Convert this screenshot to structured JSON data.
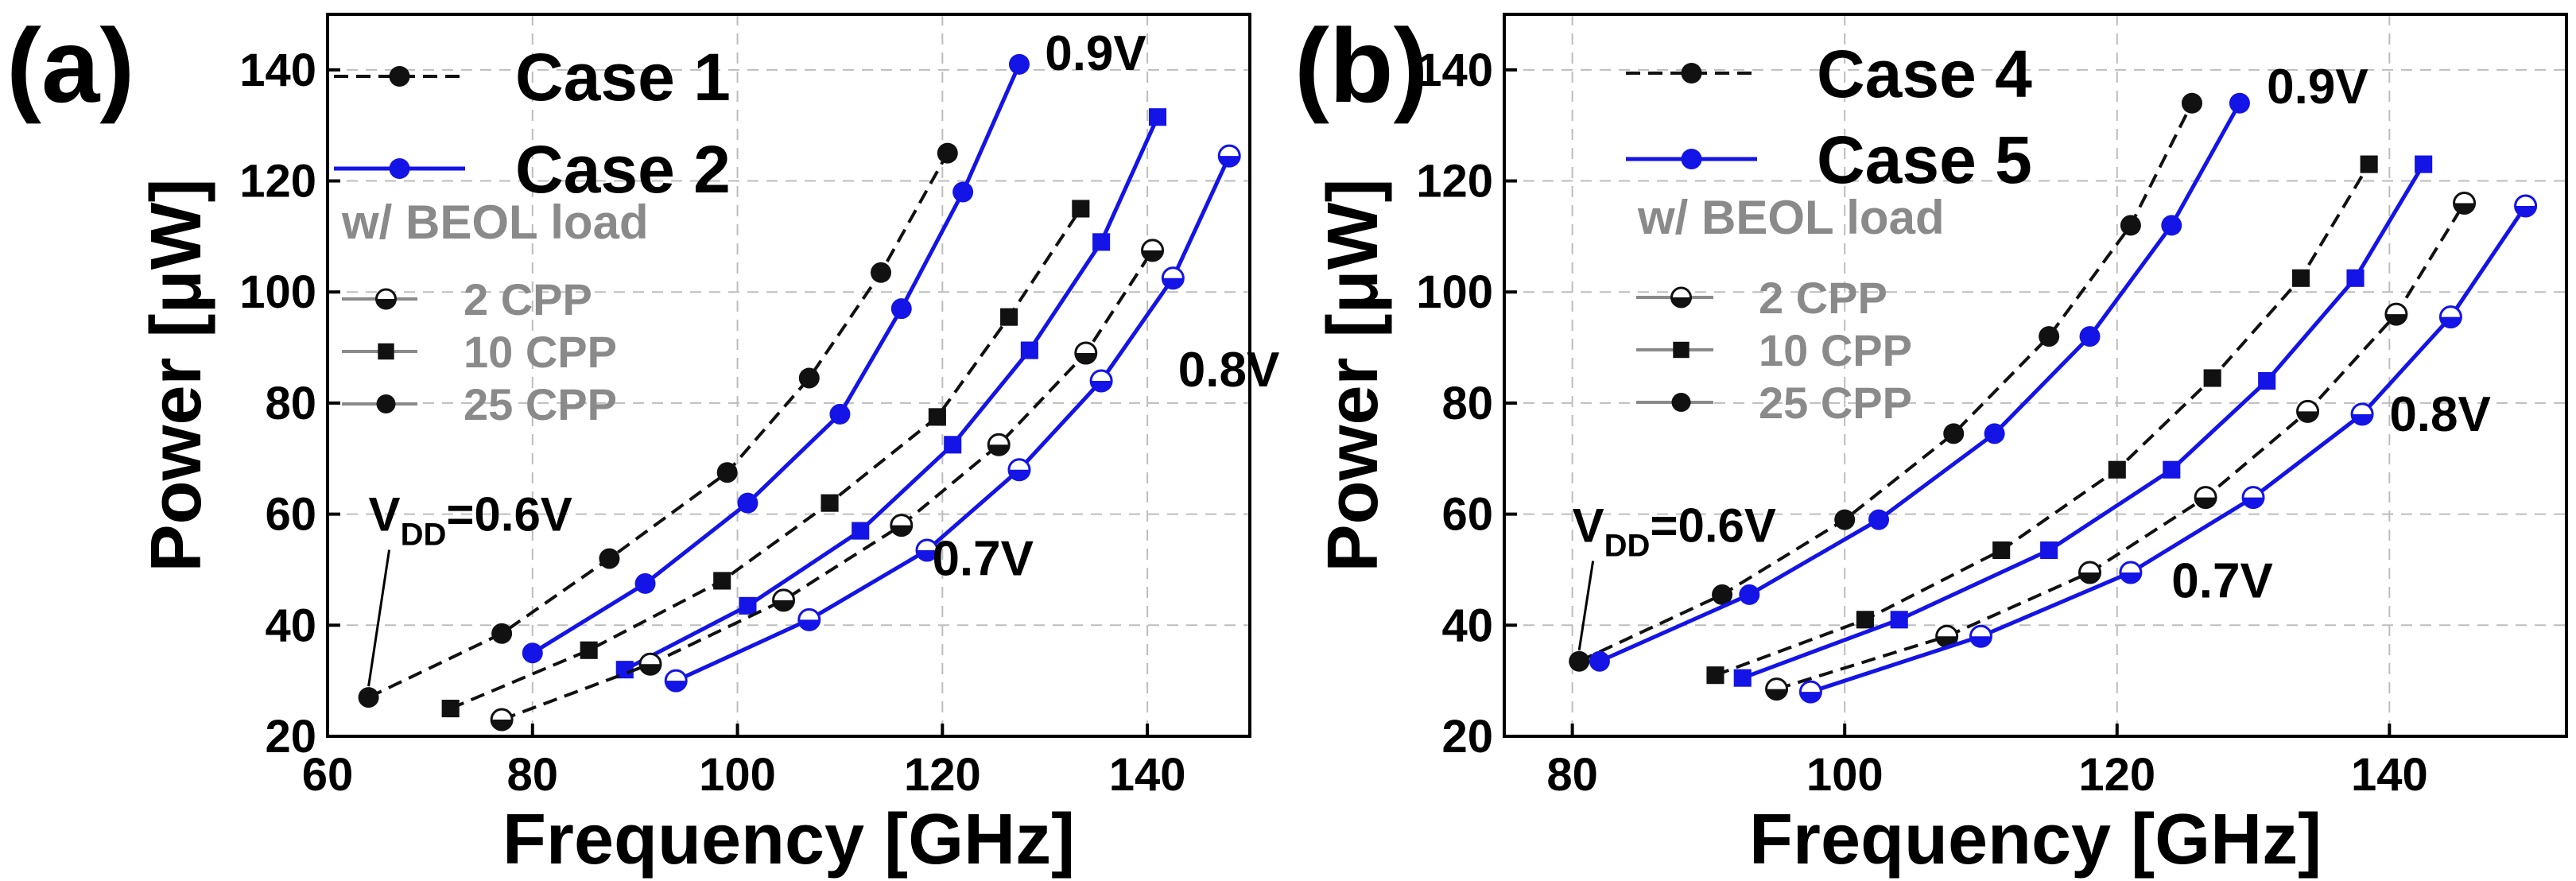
{
  "colors": {
    "black": "#111111",
    "blue": "#1414e6",
    "gray": "#8a8a8a",
    "grid": "#bdbdbd"
  },
  "chart_data": [
    {
      "type": "line",
      "panel_label": "(a)",
      "xlabel": "Frequency [GHz]",
      "ylabel": "Power [μW]",
      "xlim": [
        60,
        150
      ],
      "ylim": [
        20,
        150
      ],
      "xticks": [
        60,
        80,
        100,
        120,
        140
      ],
      "yticks": [
        20,
        40,
        60,
        80,
        100,
        120,
        140
      ],
      "grid": true,
      "legend": {
        "entries": [
          {
            "label": "Case 1",
            "color": "#111111",
            "dash": true
          },
          {
            "label": "Case 2",
            "color": "#1414e6",
            "dash": false
          }
        ],
        "subtitle": "w/ BEOL load",
        "markers": [
          {
            "label": "2 CPP",
            "marker": "half"
          },
          {
            "label": "10 CPP",
            "marker": "square"
          },
          {
            "label": "25 CPP",
            "marker": "circle"
          }
        ]
      },
      "annotations": [
        {
          "text": "0.9V",
          "x": 130,
          "y": 140
        },
        {
          "text": "0.8V",
          "x": 143,
          "y": 83
        },
        {
          "text": "0.7V",
          "x": 119,
          "y": 49
        }
      ],
      "vdd": {
        "prefix": "V",
        "sub": "DD",
        "suffix": "=0.6V",
        "x": 64,
        "y": 57,
        "point": [
          64,
          27
        ]
      },
      "series": [
        {
          "name": "Case 1",
          "load": "25 CPP",
          "color": "#111111",
          "dash": true,
          "marker": "circle",
          "x": [
            64,
            77,
            87.5,
            99,
            107,
            114,
            120.5
          ],
          "y": [
            27,
            38.5,
            52,
            67.5,
            84.5,
            103.5,
            125
          ]
        },
        {
          "name": "Case 2",
          "load": "25 CPP",
          "color": "#1414e6",
          "dash": false,
          "marker": "circle",
          "x": [
            80,
            91,
            101,
            110,
            116,
            122,
            127.5
          ],
          "y": [
            35,
            47.5,
            62,
            78,
            97,
            118,
            141
          ]
        },
        {
          "name": "Case 1",
          "load": "10 CPP",
          "color": "#111111",
          "dash": true,
          "marker": "square",
          "x": [
            72,
            85.5,
            98.5,
            109,
            119.5,
            126.5,
            133.5
          ],
          "y": [
            25,
            35.5,
            48,
            62,
            77.5,
            95.5,
            115
          ]
        },
        {
          "name": "Case 2",
          "load": "10 CPP",
          "color": "#1414e6",
          "dash": false,
          "marker": "square",
          "x": [
            89,
            101,
            112,
            121,
            128.5,
            135.5,
            141
          ],
          "y": [
            32,
            43.5,
            57,
            72.5,
            89.5,
            109,
            131.5
          ]
        },
        {
          "name": "Case 1",
          "load": "2 CPP",
          "color": "#111111",
          "dash": true,
          "marker": "half",
          "x": [
            77,
            91.5,
            104.5,
            116,
            125.5,
            134,
            140.5
          ],
          "y": [
            23,
            33,
            44.5,
            58,
            72.5,
            89,
            107.5
          ]
        },
        {
          "name": "Case 2",
          "load": "2 CPP",
          "color": "#1414e6",
          "dash": false,
          "marker": "half",
          "x": [
            94,
            107,
            118.5,
            127.5,
            135.5,
            142.5,
            148
          ],
          "y": [
            30,
            41,
            53.5,
            68,
            84,
            102.5,
            124.5
          ]
        }
      ]
    },
    {
      "type": "line",
      "panel_label": "(b)",
      "xlabel": "Frequency [GHz]",
      "ylabel": "Power [μW]",
      "xlim": [
        75,
        153
      ],
      "ylim": [
        20,
        150
      ],
      "xticks": [
        80,
        100,
        120,
        140
      ],
      "yticks": [
        20,
        40,
        60,
        80,
        100,
        120,
        140
      ],
      "grid": true,
      "legend": {
        "entries": [
          {
            "label": "Case 4",
            "color": "#111111",
            "dash": true
          },
          {
            "label": "Case 5",
            "color": "#1414e6",
            "dash": false
          }
        ],
        "subtitle": "w/ BEOL load",
        "markers": [
          {
            "label": "2 CPP",
            "marker": "half"
          },
          {
            "label": "10 CPP",
            "marker": "square"
          },
          {
            "label": "25 CPP",
            "marker": "circle"
          }
        ]
      },
      "annotations": [
        {
          "text": "0.9V",
          "x": 131,
          "y": 134
        },
        {
          "text": "0.8V",
          "x": 140,
          "y": 75
        },
        {
          "text": "0.7V",
          "x": 124,
          "y": 45
        }
      ],
      "vdd": {
        "prefix": "V",
        "sub": "DD",
        "suffix": "=0.6V",
        "x": 80,
        "y": 55,
        "point": [
          80.5,
          33.5
        ]
      },
      "series": [
        {
          "name": "Case 4",
          "load": "25 CPP",
          "color": "#111111",
          "dash": true,
          "marker": "circle",
          "x": [
            80.5,
            91,
            100,
            108,
            115,
            121,
            125.5
          ],
          "y": [
            33.5,
            45.5,
            59,
            74.5,
            92,
            112,
            134
          ]
        },
        {
          "name": "Case 5",
          "load": "25 CPP",
          "color": "#1414e6",
          "dash": false,
          "marker": "circle",
          "x": [
            82,
            93,
            102.5,
            111,
            118,
            124,
            129
          ],
          "y": [
            33.5,
            45.5,
            59,
            74.5,
            92,
            112,
            134
          ]
        },
        {
          "name": "Case 4",
          "load": "10 CPP",
          "color": "#111111",
          "dash": true,
          "marker": "square",
          "x": [
            90.5,
            101.5,
            111.5,
            120,
            127,
            133.5,
            138.5
          ],
          "y": [
            31,
            41,
            53.5,
            68,
            84.5,
            102.5,
            123
          ]
        },
        {
          "name": "Case 5",
          "load": "10 CPP",
          "color": "#1414e6",
          "dash": false,
          "marker": "square",
          "x": [
            92.5,
            104,
            115,
            124,
            131,
            137.5,
            142.5
          ],
          "y": [
            30.5,
            41,
            53.5,
            68,
            84,
            102.5,
            123
          ]
        },
        {
          "name": "Case 4",
          "load": "2 CPP",
          "color": "#111111",
          "dash": true,
          "marker": "half",
          "x": [
            95,
            107.5,
            118,
            126.5,
            134,
            140.5,
            145.5
          ],
          "y": [
            28.5,
            38,
            49.5,
            63,
            78.5,
            96,
            116
          ]
        },
        {
          "name": "Case 5",
          "load": "2 CPP",
          "color": "#1414e6",
          "dash": false,
          "marker": "half",
          "x": [
            97.5,
            110,
            121,
            130,
            138,
            144.5,
            150
          ],
          "y": [
            28,
            38,
            49.5,
            63,
            78,
            95.5,
            115.5
          ]
        }
      ]
    }
  ]
}
